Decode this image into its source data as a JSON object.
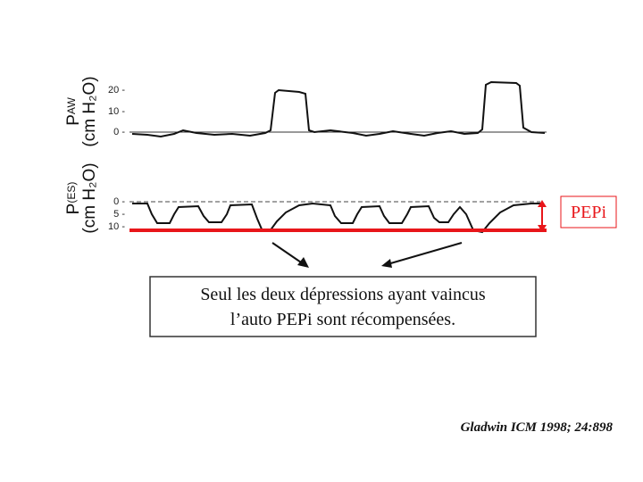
{
  "top_panel": {
    "axis_label": {
      "symbol": "P",
      "subscript": "AW",
      "unit": "(cm H₂O)"
    },
    "tick_labels": [
      "20 -",
      "10 -",
      "0 -"
    ]
  },
  "bottom_panel": {
    "axis_label": {
      "symbol": "P",
      "subscript": "(ES)",
      "unit": "(cm H₂O)"
    },
    "tick_labels": [
      "0 -",
      "5 -",
      "10 -"
    ]
  },
  "annotation": "PEPi",
  "caption": [
    "Seul les deux dépressions ayant vaincus",
    "l’auto PEPi sont récompensées."
  ],
  "citation": "Gladwin ICM 1998; 24:898"
}
